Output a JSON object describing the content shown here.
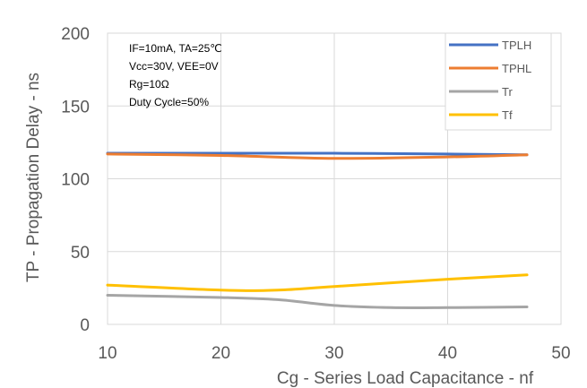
{
  "chart_data": {
    "type": "line",
    "xlabel": "Cg - Series Load Capacitance - nf",
    "ylabel": "TP - Propagation Delay - ns",
    "xlim": [
      10,
      50
    ],
    "ylim": [
      0,
      200
    ],
    "xticks": [
      "10",
      "20",
      "30",
      "40",
      "50"
    ],
    "yticks": [
      "0",
      "50",
      "100",
      "150",
      "200"
    ],
    "grid": true,
    "legend_position": "top-right",
    "annotations": [
      "IF=10mA, TA=25℃",
      "Vcc=30V, VEE=0V",
      "Rg=10Ω",
      "Duty Cycle=50%"
    ],
    "series": [
      {
        "name": "TPLH",
        "color": "#4472C4",
        "x": [
          10,
          20,
          30,
          40,
          47
        ],
        "values": [
          117.5,
          117.5,
          117.5,
          117,
          116.5
        ]
      },
      {
        "name": "TPHL",
        "color": "#ED7D31",
        "x": [
          10,
          20,
          30,
          40,
          47
        ],
        "values": [
          117,
          116,
          114,
          115,
          116.5
        ]
      },
      {
        "name": "Tr",
        "color": "#A5A5A5",
        "x": [
          10,
          20,
          25,
          30,
          35,
          40,
          47
        ],
        "values": [
          20,
          18.5,
          17,
          13,
          11.5,
          11.5,
          12
        ]
      },
      {
        "name": "Tf",
        "color": "#FFC000",
        "x": [
          10,
          20,
          25,
          30,
          40,
          47
        ],
        "values": [
          27,
          23.5,
          23.5,
          26,
          31,
          34
        ]
      }
    ]
  }
}
